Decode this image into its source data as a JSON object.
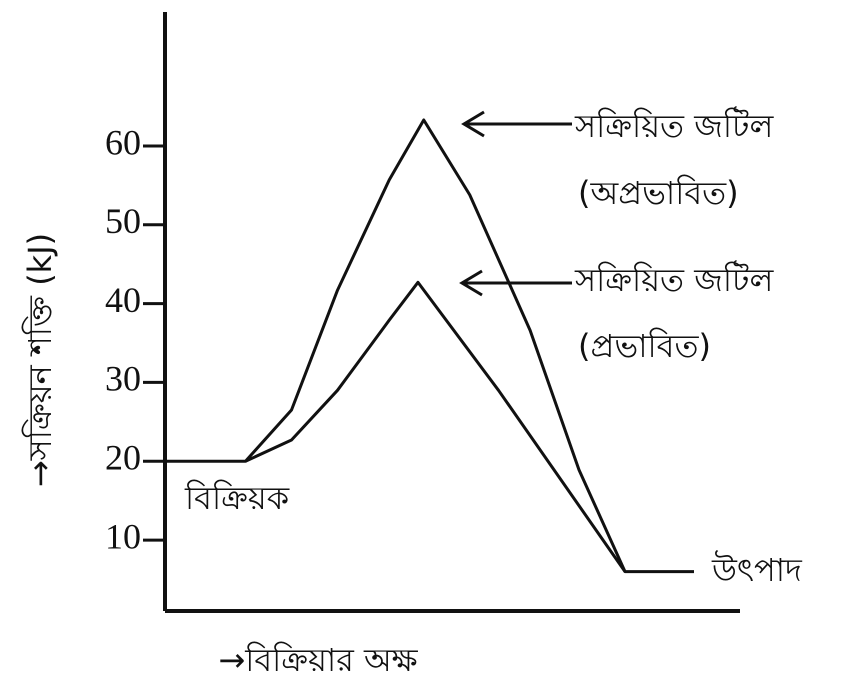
{
  "chart_data": {
    "type": "line",
    "y_label": "→সক্রিয়ন শক্তি  (kJ)",
    "x_label": "→বিক্রিয়ার অক্ষ",
    "xlim": [
      0,
      100
    ],
    "ylim": [
      1,
      77
    ],
    "yticks": [
      10,
      20,
      30,
      40,
      50,
      60
    ],
    "series": [
      {
        "color": "#111111",
        "x": [
          0,
          14,
          22,
          30,
          39,
          45,
          53,
          63.5,
          72,
          80,
          92
        ],
        "values": [
          20,
          20,
          26.5,
          41.7,
          55.7,
          63.3,
          53.8,
          36.6,
          18.9,
          6,
          6
        ]
      },
      {
        "color": "#111111",
        "x": [
          14,
          22,
          30,
          39,
          44,
          58,
          80
        ],
        "values": [
          20,
          22.7,
          29,
          37.9,
          42.7,
          29,
          6
        ]
      }
    ],
    "annotations": [
      "সক্রিয়িত জটিল",
      "(অপ্রভাবিত)",
      "সক্রিয়িত জটিল",
      "(প্রভাবিত)",
      "বিক্রিয়ক",
      "উৎপাদ"
    ]
  }
}
